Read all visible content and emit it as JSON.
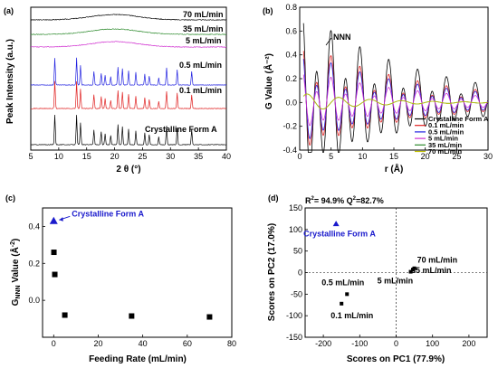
{
  "chart_data": [
    {
      "panel": "(a)",
      "type": "line",
      "xlabel": "2 θ (°)",
      "ylabel": "Peak Intensity (a.u.)",
      "xlim": [
        5,
        40
      ],
      "xticks": [
        5,
        10,
        15,
        20,
        25,
        30,
        35,
        40
      ],
      "series": [
        {
          "name": "70 mL/min",
          "color": "#000000",
          "kind": "amorphous"
        },
        {
          "name": "35 mL/min",
          "color": "#2e8b2e",
          "kind": "amorphous"
        },
        {
          "name": "5 mL/min",
          "color": "#d030d0",
          "kind": "amorphous"
        },
        {
          "name": "0.5 mL/min",
          "color": "#2020e0",
          "kind": "crystalline"
        },
        {
          "name": "0.1 mL/min",
          "color": "#e02020",
          "kind": "crystalline"
        },
        {
          "name": "Crystalline Form A",
          "color": "#000000",
          "kind": "crystalline"
        }
      ],
      "peaks_2theta": [
        9.3,
        13.2,
        13.9,
        16.3,
        17.6,
        18.3,
        19.3,
        20.6,
        21.4,
        22.5,
        23.8,
        25.4,
        26.2,
        27.9,
        29.3,
        31.2,
        33.8
      ]
    },
    {
      "panel": "(b)",
      "type": "line",
      "xlabel": "r (Å)",
      "ylabel": "G Value (Å⁻²)",
      "xlim": [
        0,
        30
      ],
      "ylim": [
        -0.4,
        0.8
      ],
      "xticks": [
        0,
        5,
        10,
        15,
        20,
        25,
        30
      ],
      "yticks": [
        -0.4,
        -0.2,
        0.0,
        0.2,
        0.4,
        0.6,
        0.8
      ],
      "annotation": "NNN",
      "legend_position": "bottom-right",
      "series": [
        {
          "name": "Crystalline Form A",
          "color": "#000000"
        },
        {
          "name": "0.1 mL/min",
          "color": "#e02020"
        },
        {
          "name": "0.5 mL/min",
          "color": "#2020e0"
        },
        {
          "name": "5 mL/min",
          "color": "#d030d0"
        },
        {
          "name": "35 mL/min",
          "color": "#2e8b2e"
        },
        {
          "name": "70 mL/min",
          "color": "#c0c000"
        }
      ]
    },
    {
      "panel": "(c)",
      "type": "scatter",
      "xlabel": "Feeding Rate (mL/min)",
      "ylabel": "G NNN Value (Å⁻²)",
      "xlim": [
        -5,
        80
      ],
      "ylim": [
        -0.2,
        0.5
      ],
      "xticks": [
        0,
        20,
        40,
        60,
        80
      ],
      "yticks": [
        0.0,
        0.2,
        0.4
      ],
      "points": [
        {
          "x": 0.1,
          "y": 0.26
        },
        {
          "x": 0.5,
          "y": 0.14
        },
        {
          "x": 5,
          "y": -0.08
        },
        {
          "x": 35,
          "y": -0.085
        },
        {
          "x": 70,
          "y": -0.09
        }
      ],
      "reference_point": {
        "x": 0,
        "y": 0.43,
        "label": "Crystalline Form A",
        "color": "#1a1acc"
      }
    },
    {
      "panel": "(d)",
      "type": "scatter",
      "xlabel": "Scores on PC1 (77.9%)",
      "ylabel": "Scores on PC2 (17.0%)",
      "xlim": [
        -250,
        250
      ],
      "ylim": [
        -150,
        150
      ],
      "xticks": [
        -200,
        -100,
        0,
        100,
        200
      ],
      "yticks": [
        -150,
        -100,
        -50,
        0,
        50,
        100,
        150
      ],
      "stats": {
        "r2_label": "R",
        "r2_exp": "2",
        "r2_value": "= 94.9%",
        "q2_label": "Q",
        "q2_exp": "2",
        "q2_value": "=82.7%"
      },
      "points": [
        {
          "x": 50,
          "y": 10,
          "label": "70 mL/min"
        },
        {
          "x": 46,
          "y": 7,
          "label": "35 mL/min"
        },
        {
          "x": 40,
          "y": 2,
          "label": "5 mL/min"
        },
        {
          "x": -135,
          "y": -50,
          "label": "0.5 mL/min"
        },
        {
          "x": -150,
          "y": -72,
          "label": "0.1 mL/min"
        }
      ],
      "reference_point": {
        "x": -165,
        "y": 113,
        "label": "Crystalline Form A",
        "color": "#1a1acc"
      }
    }
  ]
}
